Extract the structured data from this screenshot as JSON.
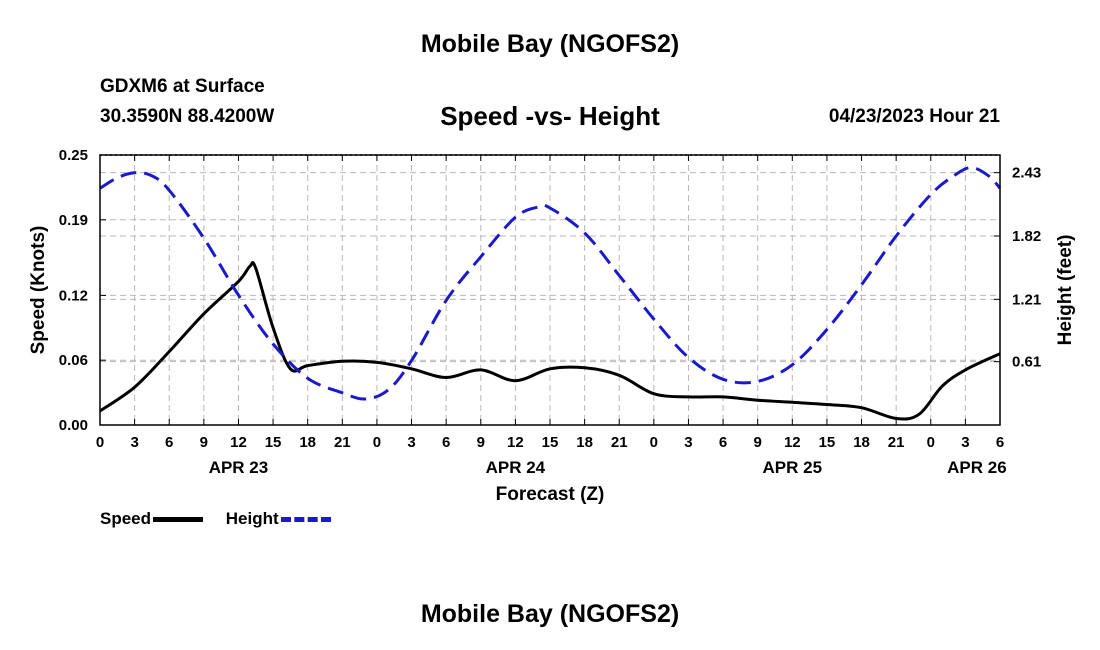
{
  "header": {
    "title": "Mobile Bay (NGOFS2)",
    "station": "GDXM6 at Surface",
    "coords": "30.3590N  88.4200W",
    "subtitle": "Speed -vs- Height",
    "datetime": "04/23/2023 Hour 21"
  },
  "footer": {
    "title": "Mobile Bay (NGOFS2)"
  },
  "legend": {
    "speed_label": "Speed",
    "height_label": "Height"
  },
  "colors": {
    "speed": "#000000",
    "height": "#1a1acc",
    "grid": "#b8b8b8"
  },
  "chart_data": {
    "type": "line",
    "title": "Speed -vs- Height",
    "xlabel": "Forecast (Z)",
    "ylabel": "Speed (Knots)",
    "y2label": "Height (feet)",
    "x_unit": "hours from Apr 23 00Z",
    "xlim": [
      0,
      78
    ],
    "ylim": [
      0,
      0.25
    ],
    "y2lim": [
      0,
      2.6
    ],
    "x_ticks": [
      0,
      3,
      6,
      9,
      12,
      15,
      18,
      21,
      24,
      27,
      30,
      33,
      36,
      39,
      42,
      45,
      48,
      51,
      54,
      57,
      60,
      63,
      66,
      69,
      72,
      75,
      78
    ],
    "x_tick_labels": [
      "0",
      "3",
      "6",
      "9",
      "12",
      "15",
      "18",
      "21",
      "0",
      "3",
      "6",
      "9",
      "12",
      "15",
      "18",
      "21",
      "0",
      "3",
      "6",
      "9",
      "12",
      "15",
      "18",
      "21",
      "0",
      "3",
      "6"
    ],
    "date_labels": [
      {
        "x": 12,
        "label": "APR 23"
      },
      {
        "x": 36,
        "label": "APR 24"
      },
      {
        "x": 60,
        "label": "APR 25"
      },
      {
        "x": 76,
        "label": "APR 26"
      }
    ],
    "y_ticks": [
      0.0,
      0.06,
      0.12,
      0.19,
      0.25
    ],
    "y_tick_labels": [
      "0.00",
      "0.06",
      "0.12",
      "0.19",
      "0.25"
    ],
    "y2_ticks": [
      0.61,
      1.21,
      1.82,
      2.43
    ],
    "y2_tick_labels": [
      "0.61",
      "1.21",
      "1.82",
      "2.43"
    ],
    "grid": true,
    "series": [
      {
        "name": "Speed",
        "axis": "left",
        "style": "solid",
        "x": [
          0,
          3,
          6,
          9,
          12,
          13,
          13.5,
          15,
          16.5,
          18,
          21,
          24,
          27,
          30,
          33,
          36,
          39,
          42,
          45,
          48,
          51,
          54,
          57,
          60,
          63,
          66,
          69,
          71,
          73,
          75,
          78
        ],
        "y": [
          0.013,
          0.035,
          0.068,
          0.103,
          0.133,
          0.147,
          0.145,
          0.09,
          0.052,
          0.055,
          0.059,
          0.058,
          0.052,
          0.044,
          0.051,
          0.041,
          0.052,
          0.053,
          0.046,
          0.029,
          0.026,
          0.026,
          0.023,
          0.021,
          0.019,
          0.016,
          0.006,
          0.01,
          0.036,
          0.051,
          0.066
        ]
      },
      {
        "name": "Height",
        "axis": "right",
        "style": "dashed",
        "x": [
          0,
          1.5,
          3,
          4.5,
          6,
          9,
          12,
          15,
          18,
          21,
          23,
          25,
          27,
          30,
          33,
          36,
          38,
          39,
          42,
          45,
          48,
          51,
          54,
          57,
          60,
          63,
          66,
          69,
          72,
          74,
          75.5,
          77,
          78
        ],
        "y": [
          2.28,
          2.38,
          2.43,
          2.4,
          2.26,
          1.8,
          1.25,
          0.78,
          0.45,
          0.31,
          0.25,
          0.34,
          0.62,
          1.2,
          1.62,
          2.0,
          2.1,
          2.09,
          1.85,
          1.44,
          1.02,
          0.65,
          0.44,
          0.42,
          0.58,
          0.92,
          1.35,
          1.82,
          2.22,
          2.4,
          2.48,
          2.4,
          2.28
        ]
      }
    ]
  }
}
